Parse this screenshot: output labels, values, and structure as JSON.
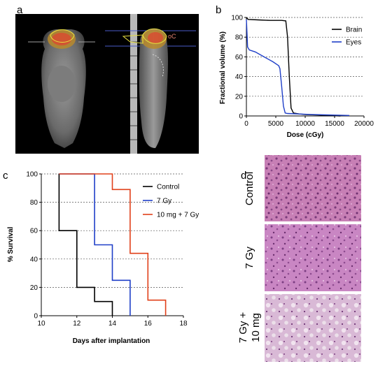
{
  "panels": {
    "a": "a",
    "b": "b",
    "c": "c",
    "d": "d"
  },
  "ct_panel": {
    "roi_label": "oC"
  },
  "chart_data": [
    {
      "id": "b",
      "type": "line",
      "xlabel": "Dose (cGy)",
      "ylabel": "Fractional volume (%)",
      "xlim": [
        0,
        20000
      ],
      "ylim": [
        0,
        100
      ],
      "xticks": [
        "0",
        "5000",
        "10000",
        "15000",
        "20000"
      ],
      "yticks": [
        "0",
        "20",
        "40",
        "60",
        "80",
        "100"
      ],
      "grid": "horizontal dashed",
      "legend_placement": "top-right",
      "series": [
        {
          "name": "Brain",
          "color": "#000000",
          "points": [
            [
              0,
              100
            ],
            [
              300,
              98
            ],
            [
              2000,
              97.5
            ],
            [
              4000,
              97
            ],
            [
              6000,
              97
            ],
            [
              6700,
              96.5
            ],
            [
              7000,
              80
            ],
            [
              7300,
              40
            ],
            [
              7600,
              8
            ],
            [
              8000,
              3
            ],
            [
              9000,
              2
            ],
            [
              10000,
              1.5
            ],
            [
              12000,
              1
            ],
            [
              14000,
              0.5
            ],
            [
              16000,
              0
            ]
          ]
        },
        {
          "name": "Eyes",
          "color": "#1f3fc8",
          "points": [
            [
              0,
              98
            ],
            [
              100,
              85
            ],
            [
              200,
              70
            ],
            [
              500,
              67
            ],
            [
              1500,
              65
            ],
            [
              3000,
              60
            ],
            [
              4500,
              55
            ],
            [
              5500,
              51
            ],
            [
              5700,
              48
            ],
            [
              6000,
              30
            ],
            [
              6300,
              10
            ],
            [
              6600,
              3
            ],
            [
              7000,
              2.5
            ],
            [
              9000,
              2
            ],
            [
              11000,
              1.5
            ],
            [
              14000,
              1
            ],
            [
              17500,
              0.5
            ]
          ]
        }
      ]
    },
    {
      "id": "c",
      "type": "line",
      "step": true,
      "xlabel": "Days after implantation",
      "ylabel": "% Survival",
      "xlim": [
        10,
        18
      ],
      "ylim": [
        0,
        100
      ],
      "xticks": [
        "10",
        "12",
        "14",
        "16",
        "18"
      ],
      "yticks": [
        "0",
        "20",
        "40",
        "60",
        "80",
        "100"
      ],
      "grid": "horizontal dashed",
      "legend_placement": "top-right",
      "series": [
        {
          "name": "Control",
          "color": "#000000",
          "points": [
            [
              11,
              100
            ],
            [
              11,
              60
            ],
            [
              12,
              60
            ],
            [
              12,
              20
            ],
            [
              13,
              20
            ],
            [
              13,
              10
            ],
            [
              14,
              10
            ],
            [
              14,
              0
            ]
          ]
        },
        {
          "name": "7 Gy",
          "color": "#1f3fc8",
          "points": [
            [
              11,
              100
            ],
            [
              13,
              100
            ],
            [
              13,
              50
            ],
            [
              14,
              50
            ],
            [
              14,
              25
            ],
            [
              15,
              25
            ],
            [
              15,
              0
            ]
          ]
        },
        {
          "name": "10 mg + 7 Gy",
          "color": "#e0401a",
          "points": [
            [
              11,
              100
            ],
            [
              14,
              100
            ],
            [
              14,
              89
            ],
            [
              15,
              89
            ],
            [
              15,
              44
            ],
            [
              16,
              44
            ],
            [
              16,
              11
            ],
            [
              17,
              11
            ],
            [
              17,
              0
            ]
          ]
        }
      ]
    }
  ],
  "histology": {
    "labels": [
      "Control",
      "7 Gy",
      "7 Gy +\n10 mg"
    ],
    "line1": [
      "Control",
      "7 Gy",
      "7 Gy +"
    ],
    "line2": [
      "",
      "",
      "10 mg"
    ]
  }
}
